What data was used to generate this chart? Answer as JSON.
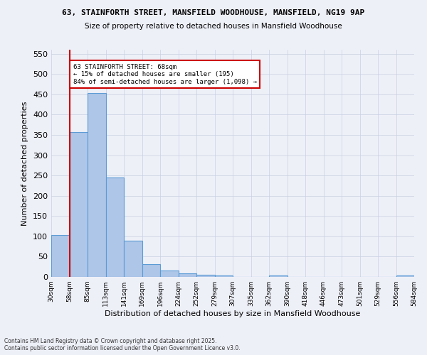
{
  "title": "63, STAINFORTH STREET, MANSFIELD WOODHOUSE, MANSFIELD, NG19 9AP",
  "subtitle": "Size of property relative to detached houses in Mansfield Woodhouse",
  "xlabel": "Distribution of detached houses by size in Mansfield Woodhouse",
  "ylabel": "Number of detached properties",
  "bar_values": [
    103,
    357,
    453,
    245,
    90,
    32,
    15,
    8,
    5,
    3,
    0,
    0,
    4,
    0,
    0,
    0,
    0,
    0,
    0,
    4
  ],
  "bin_labels": [
    "30sqm",
    "58sqm",
    "85sqm",
    "113sqm",
    "141sqm",
    "169sqm",
    "196sqm",
    "224sqm",
    "252sqm",
    "279sqm",
    "307sqm",
    "335sqm",
    "362sqm",
    "390sqm",
    "418sqm",
    "446sqm",
    "473sqm",
    "501sqm",
    "529sqm",
    "556sqm",
    "584sqm"
  ],
  "bar_color": "#aec6e8",
  "bar_edge_color": "#5b9bd5",
  "grid_color": "#c8d0e0",
  "background_color": "#eef0f8",
  "vline_color": "#cc0000",
  "annotation_text": "63 STAINFORTH STREET: 68sqm\n← 15% of detached houses are smaller (195)\n84% of semi-detached houses are larger (1,098) →",
  "annotation_box_color": "#ffffff",
  "annotation_box_edge": "#cc0000",
  "ylim": [
    0,
    560
  ],
  "yticks": [
    0,
    50,
    100,
    150,
    200,
    250,
    300,
    350,
    400,
    450,
    500,
    550
  ],
  "footer": "Contains HM Land Registry data © Crown copyright and database right 2025.\nContains public sector information licensed under the Open Government Licence v3.0."
}
